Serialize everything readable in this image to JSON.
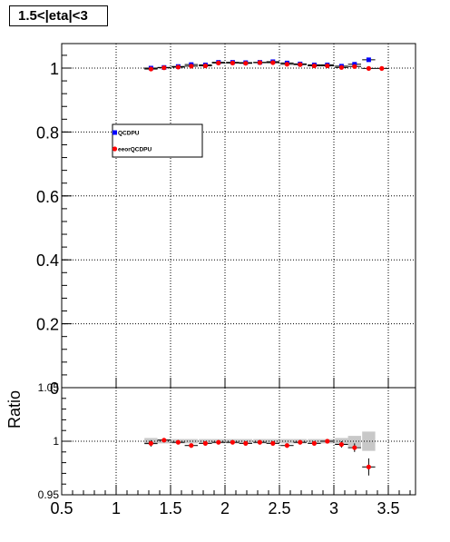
{
  "title": "1.5<|eta|<3",
  "chart_data": [
    {
      "type": "scatter",
      "panel": "top",
      "xlim": [
        0.5,
        3.75
      ],
      "ylim": [
        0,
        1.07
      ],
      "yticks": [
        0,
        0.2,
        0.4,
        0.6,
        0.8,
        1
      ],
      "ytick_labels": [
        "0",
        "0.2",
        "0.4",
        "0.6",
        "0.8",
        "1"
      ],
      "grid": true,
      "legend_placement": "center-left",
      "series": [
        {
          "name": "QCDPU",
          "color": "#0000ff",
          "marker": "square",
          "x": [
            1.32,
            1.44,
            1.57,
            1.69,
            1.82,
            1.94,
            2.07,
            2.19,
            2.32,
            2.44,
            2.57,
            2.69,
            2.82,
            2.94,
            3.07,
            3.19,
            3.32
          ],
          "y": [
            1.0,
            1.002,
            1.005,
            1.011,
            1.01,
            1.018,
            1.018,
            1.017,
            1.018,
            1.02,
            1.016,
            1.013,
            1.01,
            1.01,
            1.006,
            1.012,
            1.026
          ]
        },
        {
          "name": "eeorQCDPU",
          "color": "#ff0000",
          "marker": "circle",
          "x": [
            1.32,
            1.44,
            1.57,
            1.69,
            1.82,
            1.94,
            2.07,
            2.19,
            2.32,
            2.44,
            2.57,
            2.69,
            2.82,
            2.94,
            3.07,
            3.19,
            3.32,
            3.44
          ],
          "y": [
            0.997,
            1.001,
            1.003,
            1.006,
            1.007,
            1.016,
            1.016,
            1.015,
            1.017,
            1.017,
            1.012,
            1.011,
            1.007,
            1.007,
            1.002,
            1.005,
            0.999,
            0.999
          ]
        }
      ]
    },
    {
      "type": "scatter",
      "panel": "ratio",
      "ylabel": "Ratio",
      "xlim": [
        0.5,
        3.75
      ],
      "ylim": [
        0.95,
        1.05
      ],
      "xticks": [
        0.5,
        1,
        1.5,
        2,
        2.5,
        3,
        3.5
      ],
      "xtick_labels": [
        "0.5",
        "1",
        "1.5",
        "2",
        "2.5",
        "3",
        "3.5"
      ],
      "yticks": [
        0.95,
        1,
        1.05
      ],
      "ytick_labels": [
        "0.95",
        "1",
        "1.05"
      ],
      "grid": true,
      "band_color": "#c8c8c8",
      "band_x": [
        1.32,
        1.44,
        1.57,
        1.69,
        1.82,
        1.94,
        2.07,
        2.19,
        2.32,
        2.44,
        2.57,
        2.69,
        2.82,
        2.94,
        3.07,
        3.19,
        3.32
      ],
      "band_halfwidth": [
        0.003,
        0.002,
        0.002,
        0.002,
        0.002,
        0.002,
        0.002,
        0.002,
        0.002,
        0.002,
        0.002,
        0.002,
        0.002,
        0.002,
        0.003,
        0.005,
        0.009
      ],
      "series": [
        {
          "name": "",
          "color": "#ff0000",
          "marker": "circle",
          "x": [
            1.32,
            1.44,
            1.57,
            1.69,
            1.82,
            1.94,
            2.07,
            2.19,
            2.32,
            2.44,
            2.57,
            2.69,
            2.82,
            2.94,
            3.07,
            3.19,
            3.32
          ],
          "y": [
            0.998,
            1.001,
            0.999,
            0.996,
            0.998,
            0.999,
            0.999,
            0.998,
            0.999,
            0.998,
            0.996,
            0.999,
            0.998,
            1.0,
            0.997,
            0.994,
            0.976
          ],
          "yerr": [
            0.003,
            0.002,
            0.002,
            0.002,
            0.002,
            0.002,
            0.002,
            0.002,
            0.002,
            0.002,
            0.002,
            0.002,
            0.002,
            0.002,
            0.003,
            0.004,
            0.008
          ]
        }
      ]
    }
  ]
}
